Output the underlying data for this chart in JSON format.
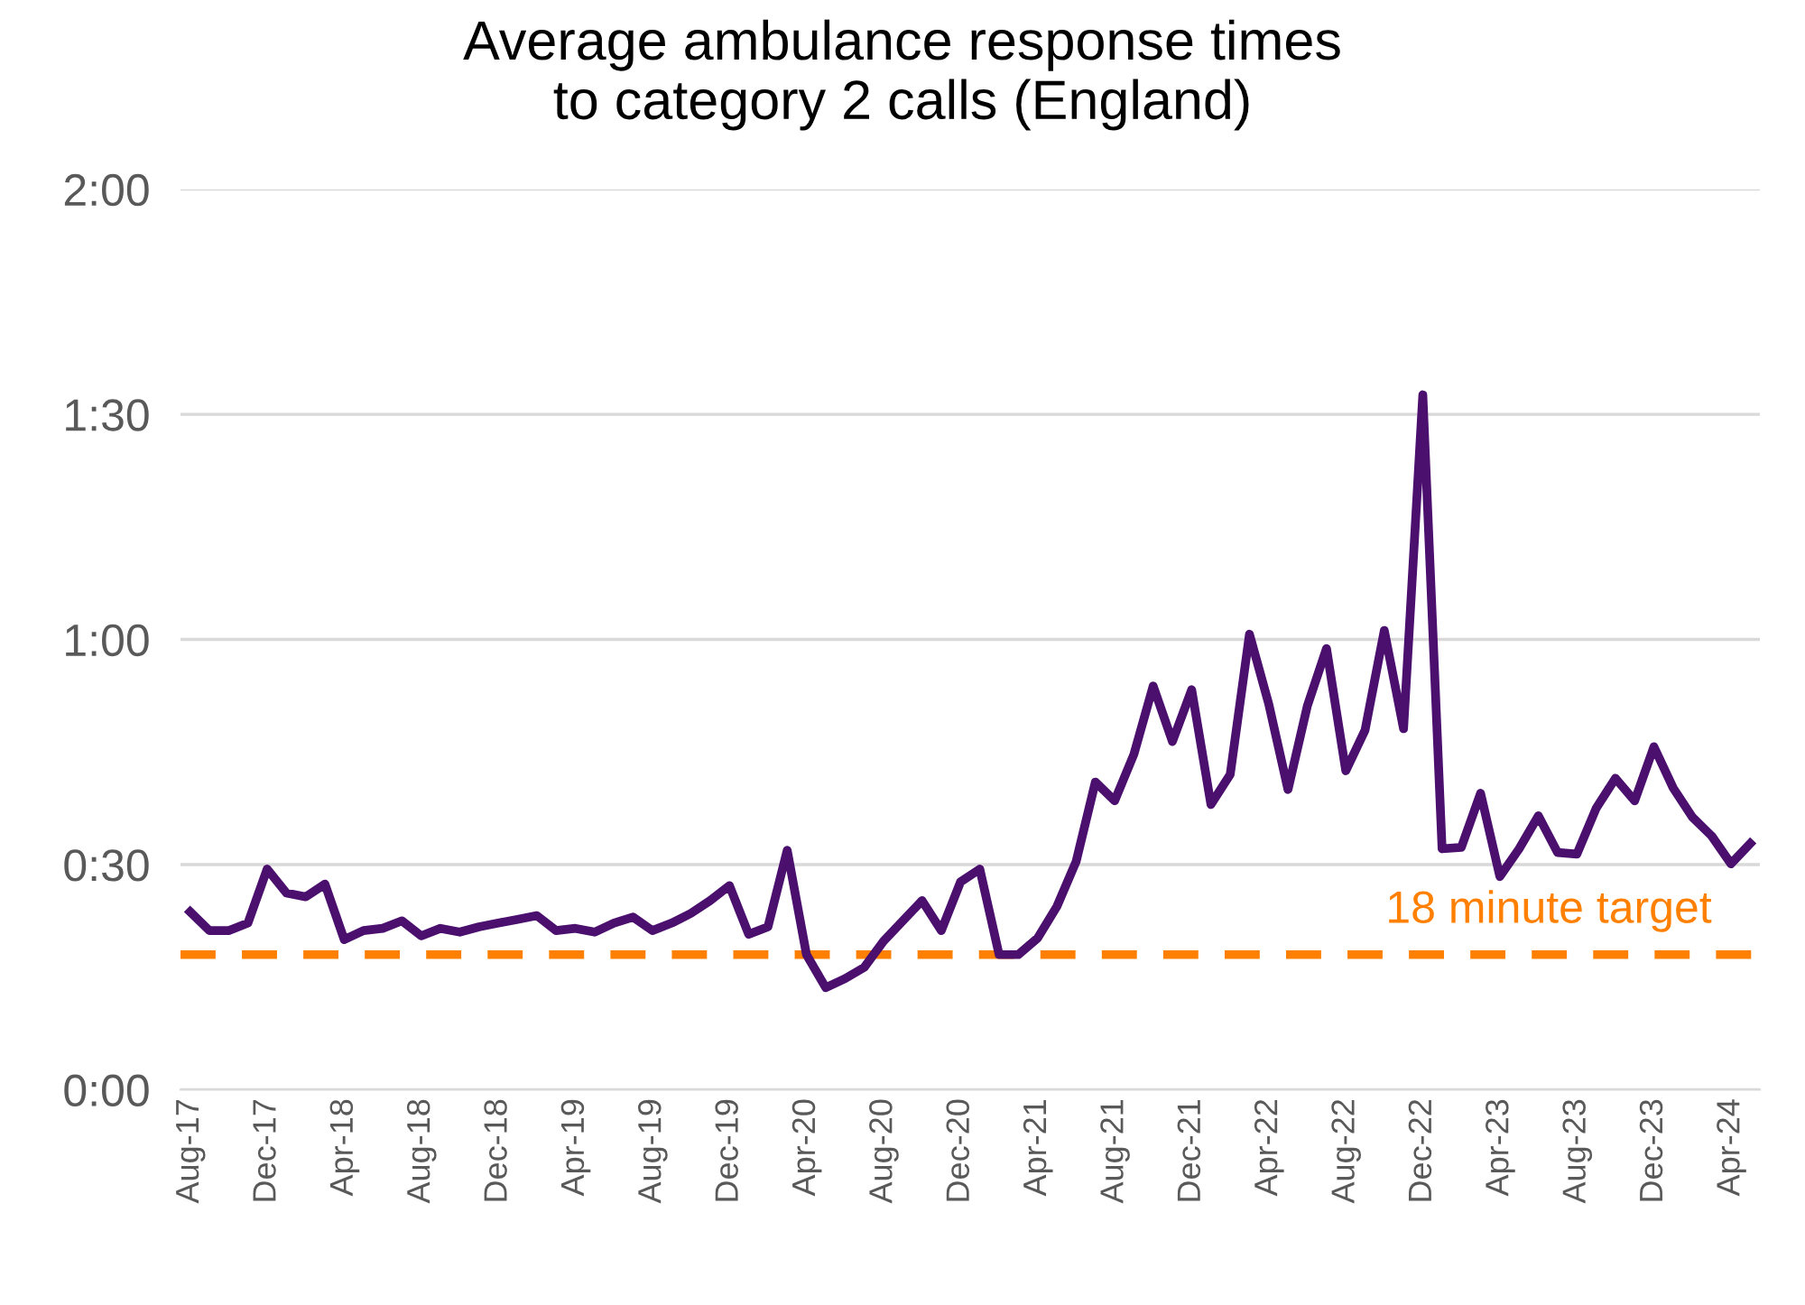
{
  "chart_data": {
    "type": "line",
    "title": "Average ambulance response times\nto category 2 calls (England)",
    "categories": [
      "Aug-17",
      null,
      null,
      null,
      "Dec-17",
      null,
      null,
      null,
      "Apr-18",
      null,
      null,
      null,
      "Aug-18",
      null,
      null,
      null,
      "Dec-18",
      null,
      null,
      null,
      "Apr-19",
      null,
      null,
      null,
      "Aug-19",
      null,
      null,
      null,
      "Dec-19",
      null,
      null,
      null,
      "Apr-20",
      null,
      null,
      null,
      "Aug-20",
      null,
      null,
      null,
      "Dec-20",
      null,
      null,
      null,
      "Apr-21",
      null,
      null,
      null,
      "Aug-21",
      null,
      null,
      null,
      "Dec-21",
      null,
      null,
      null,
      "Apr-22",
      null,
      null,
      null,
      "Aug-22",
      null,
      null,
      null,
      "Dec-22",
      null,
      null,
      null,
      "Apr-23",
      null,
      null,
      null,
      "Aug-23",
      null,
      null,
      null,
      "Dec-23",
      null,
      null,
      null,
      "Apr-24",
      null
    ],
    "series": [
      {
        "color": "#4b0f6e",
        "values": [
          23.7,
          21.2,
          21.2,
          22.2,
          29.4,
          26.2,
          25.7,
          27.4,
          20,
          21.2,
          21.5,
          22.5,
          20.5,
          21.5,
          21,
          21.7,
          22.2,
          22.7,
          23.2,
          21.2,
          21.5,
          21,
          22.2,
          23,
          21.2,
          22.2,
          23.5,
          25.2,
          27.2,
          20.7,
          21.7,
          31.9,
          18,
          13.6,
          14.8,
          16.3,
          19.8,
          22.5,
          25.2,
          21.2,
          27.7,
          29.4,
          18,
          18,
          20.2,
          24.4,
          30.4,
          41,
          38.5,
          44.7,
          53.8,
          46.4,
          53.3,
          38,
          42,
          60.7,
          51.4,
          40,
          51.1,
          58.8,
          42.5,
          47.9,
          61.2,
          48.1,
          92.6,
          32.1,
          32.3,
          39.5,
          28.4,
          32.1,
          36.5,
          31.6,
          31.4,
          37.5,
          41.5,
          38.5,
          45.7,
          40.2,
          36.3,
          33.8,
          30.1,
          32.8
        ]
      }
    ],
    "ylim": [
      0,
      120
    ],
    "yticks": [
      {
        "value": 0,
        "label": "0:00"
      },
      {
        "value": 30,
        "label": "0:30"
      },
      {
        "value": 60,
        "label": "1:00"
      },
      {
        "value": 90,
        "label": "1:30"
      },
      {
        "value": 120,
        "label": "2:00"
      }
    ],
    "ref_lines": [
      {
        "axis": "y",
        "value": 18,
        "label": "18 minute target",
        "color": "#ff8000",
        "line_style": "dashed"
      }
    ],
    "grid": "y",
    "legend": false,
    "marker": "none",
    "line_style": "solid"
  }
}
